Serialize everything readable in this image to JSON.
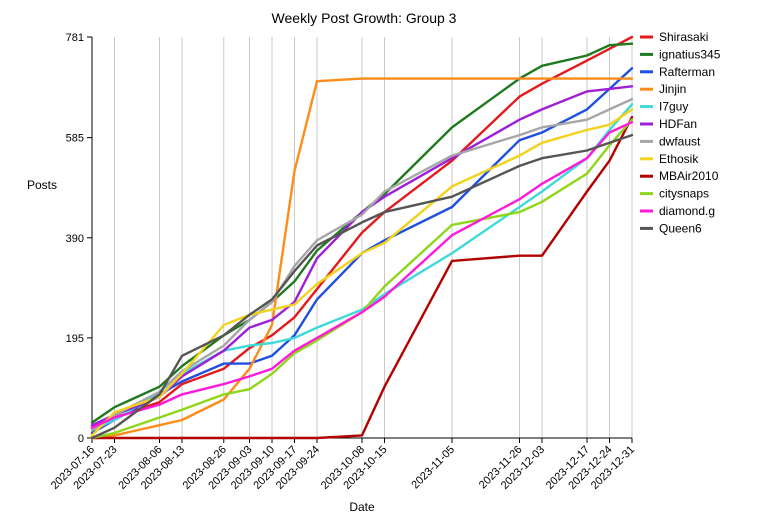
{
  "chart_data": {
    "type": "line",
    "title": "Weekly Post Growth: Group 3",
    "xlabel": "Date",
    "ylabel": "Posts",
    "ylim": [
      0,
      781
    ],
    "yticks": [
      0,
      195,
      390,
      585,
      781
    ],
    "grid": "vertical",
    "legend_position": "right",
    "x": [
      "2023-07-16",
      "2023-07-23",
      "2023-08-06",
      "2023-08-13",
      "2023-08-26",
      "2023-09-03",
      "2023-09-10",
      "2023-09-17",
      "2023-09-24",
      "2023-10-08",
      "2023-10-15",
      "2023-11-05",
      "2023-11-26",
      "2023-12-03",
      "2023-12-17",
      "2023-12-24",
      "2023-12-31"
    ],
    "series": [
      {
        "name": "Shirasaki",
        "color": "#e41a1c",
        "values": [
          20,
          40,
          70,
          105,
          135,
          175,
          200,
          235,
          290,
          400,
          440,
          540,
          665,
          690,
          735,
          758,
          781
        ]
      },
      {
        "name": "ignatius345",
        "color": "#1f7a1f",
        "values": [
          30,
          60,
          100,
          140,
          200,
          230,
          265,
          305,
          365,
          440,
          475,
          605,
          700,
          725,
          745,
          765,
          768
        ]
      },
      {
        "name": "Rafterman",
        "color": "#1f4fe0",
        "values": [
          10,
          35,
          85,
          110,
          145,
          145,
          160,
          200,
          270,
          360,
          385,
          450,
          580,
          595,
          640,
          680,
          720
        ]
      },
      {
        "name": "Jinjin",
        "color": "#ff8c1a",
        "values": [
          2,
          5,
          25,
          35,
          75,
          135,
          220,
          520,
          695,
          700,
          700,
          700,
          700,
          700,
          700,
          700,
          700
        ]
      },
      {
        "name": "I7guy",
        "color": "#40d9d9",
        "values": [
          15,
          35,
          90,
          125,
          170,
          180,
          185,
          195,
          215,
          250,
          280,
          360,
          450,
          480,
          545,
          600,
          650
        ]
      },
      {
        "name": "HDFan",
        "color": "#9f1fd9",
        "values": [
          25,
          45,
          80,
          120,
          170,
          215,
          230,
          265,
          350,
          440,
          470,
          545,
          620,
          640,
          675,
          680,
          685
        ]
      },
      {
        "name": "dwfaust",
        "color": "#a6a6a6",
        "values": [
          15,
          45,
          90,
          130,
          180,
          230,
          265,
          335,
          385,
          435,
          480,
          550,
          590,
          605,
          620,
          640,
          660
        ]
      },
      {
        "name": "Ethosik",
        "color": "#f2d21b",
        "values": [
          5,
          50,
          80,
          125,
          220,
          240,
          250,
          260,
          300,
          360,
          380,
          490,
          550,
          575,
          600,
          610,
          640
        ]
      },
      {
        "name": "MBAir2010",
        "color": "#b30000",
        "values": [
          0,
          0,
          0,
          0,
          0,
          0,
          0,
          0,
          0,
          5,
          100,
          345,
          355,
          355,
          480,
          540,
          625
        ]
      },
      {
        "name": "citysnaps",
        "color": "#8fd61a",
        "values": [
          0,
          10,
          40,
          55,
          85,
          95,
          125,
          165,
          190,
          245,
          295,
          415,
          440,
          460,
          515,
          570,
          620
        ]
      },
      {
        "name": "diamond.g",
        "color": "#ff1ad9",
        "values": [
          20,
          40,
          65,
          85,
          105,
          120,
          135,
          170,
          195,
          245,
          275,
          395,
          465,
          495,
          545,
          595,
          615
        ]
      },
      {
        "name": "Queen6",
        "color": "#555555",
        "values": [
          0,
          20,
          85,
          160,
          200,
          240,
          270,
          325,
          375,
          420,
          440,
          470,
          530,
          545,
          560,
          575,
          590
        ]
      }
    ]
  }
}
